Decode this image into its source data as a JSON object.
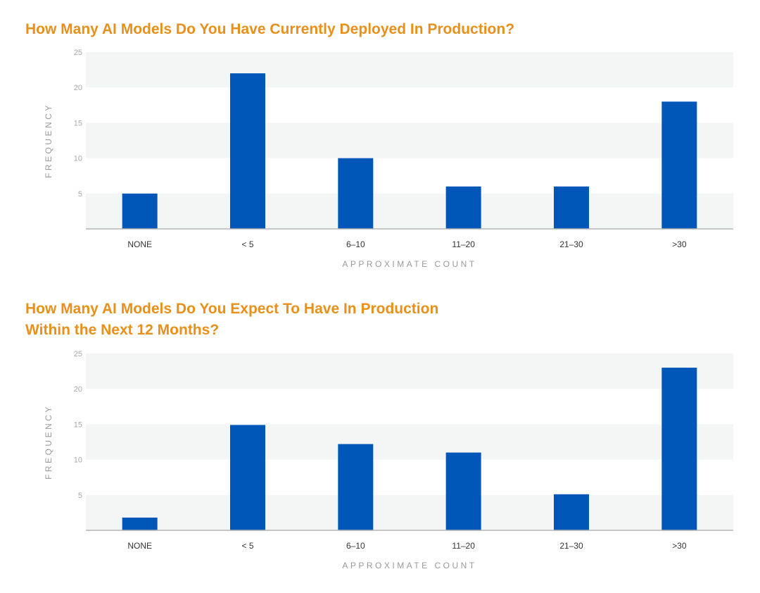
{
  "charts": [
    {
      "title_lines": [
        "How Many AI Models Do You Have Currently Deployed In Production?"
      ],
      "chart_data": {
        "type": "bar",
        "categories": [
          "NONE",
          "< 5",
          "6–10",
          "11–20",
          "21–30",
          ">30"
        ],
        "values": [
          5,
          22,
          10,
          6,
          6,
          18
        ],
        "xlabel": "APPROXIMATE COUNT",
        "ylabel": "FREQUENCY",
        "ylim": [
          0,
          25
        ],
        "yticks": [
          5,
          10,
          15,
          20,
          25
        ],
        "grid": "alternating horizontal bands",
        "bar_color": "#0057b8",
        "band_color": "#f4f5f5"
      }
    },
    {
      "title_lines": [
        "How Many AI Models Do You Expect To Have In Production",
        "Within the Next 12 Months?"
      ],
      "chart_data": {
        "type": "bar",
        "categories": [
          "NONE",
          "< 5",
          "6–10",
          "11–20",
          "21–30",
          ">30"
        ],
        "values": [
          1.8,
          14.9,
          12.2,
          11,
          5.1,
          23
        ],
        "xlabel": "APPROXIMATE COUNT",
        "ylabel": "FREQUENCY",
        "ylim": [
          0,
          25
        ],
        "yticks": [
          5,
          10,
          15,
          20,
          25
        ],
        "grid": "alternating horizontal bands",
        "bar_color": "#0057b8",
        "band_color": "#f4f5f5"
      }
    }
  ]
}
